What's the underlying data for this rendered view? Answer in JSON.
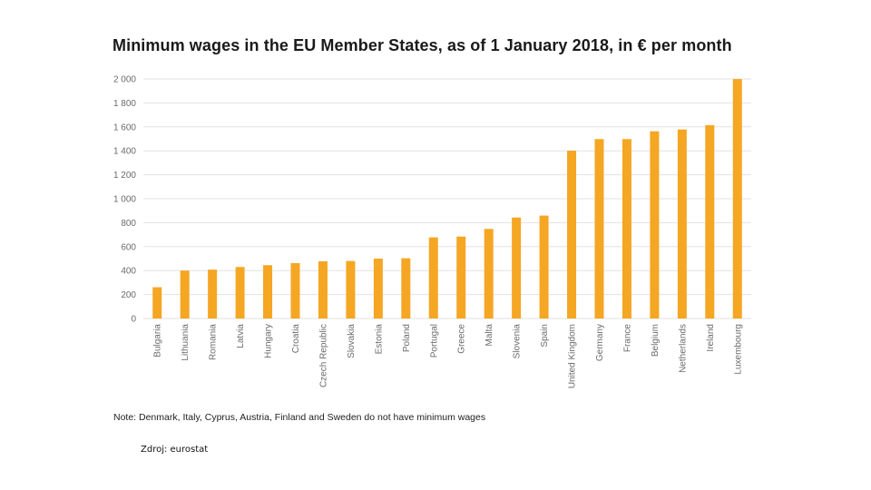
{
  "chart_data": {
    "type": "bar",
    "title": "Minimum  wages in the EU Member States, as of 1 January 2018, in € per month",
    "xlabel": "",
    "ylabel": "",
    "ylim": [
      0,
      2000
    ],
    "yticks": [
      0,
      200,
      400,
      600,
      800,
      1000,
      1200,
      1400,
      1600,
      1800,
      2000
    ],
    "ytick_labels": [
      "0",
      "200",
      "400",
      "600",
      "800",
      "1 000",
      "1 200",
      "1 400",
      "1 600",
      "1 800",
      "2 000"
    ],
    "grid": true,
    "legend": "none",
    "categories": [
      "Bulgaria",
      "Lithuania",
      "Romania",
      "Latvia",
      "Hungary",
      "Croatia",
      "Czech Republic",
      "Slovakia",
      "Estonia",
      "Poland",
      "Portugal",
      "Greece",
      "Malta",
      "Slovenia",
      "Spain",
      "United Kingdom",
      "Germany",
      "France",
      "Belgium",
      "Netherlands",
      "Ireland",
      "Luxembourg"
    ],
    "values": [
      261,
      400,
      408,
      430,
      445,
      462,
      478,
      480,
      500,
      503,
      677,
      684,
      748,
      843,
      859,
      1401,
      1498,
      1498,
      1563,
      1578,
      1614,
      1999
    ],
    "bar_color": "#f5a623",
    "grid_color": "#e2e2e2",
    "note": "Note: Denmark, Italy, Cyprus, Austria, Finland and Sweden do not have minimum wages"
  },
  "source": "Zdroj: eurostat"
}
